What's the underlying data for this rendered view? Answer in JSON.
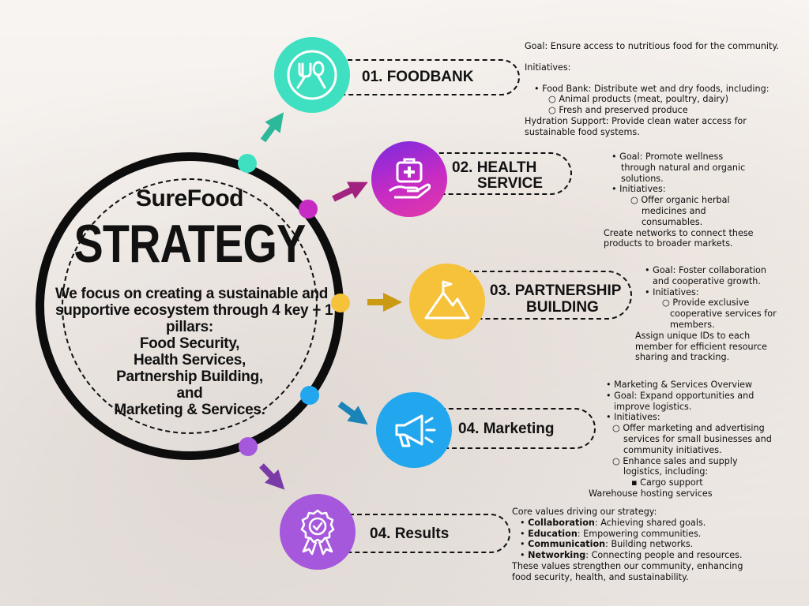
{
  "hub": {
    "brand": "SureFood",
    "title": "STRATEGY",
    "description": [
      "We focus on creating a sustainable and",
      "supportive ecosystem through 4 key + 1",
      "pillars:",
      "Food Security,",
      "Health Services,",
      "Partnership Building,",
      "and",
      "Marketing & Services."
    ]
  },
  "colors": {
    "foodbank": "#3fe0c2",
    "health": "#c62bc4",
    "partnership": "#f5c23a",
    "marketing": "#22a7ee",
    "results": "#a558dc",
    "ring": "#0d0d0d"
  },
  "pillars": [
    {
      "key": "foodbank",
      "label_lines": [
        "01. FOODBANK"
      ],
      "icon": "fork-spoon-icon",
      "details": [
        "Goal: Ensure access to nutritious food for the community.",
        "",
        "Initiatives:",
        "",
        "• Food Bank: Distribute wet and dry foods, including:",
        "○ Animal products (meat, poultry, dairy)",
        "○ Fresh and preserved produce",
        "Hydration Support: Provide clean water access for",
        "sustainable food systems."
      ]
    },
    {
      "key": "health",
      "label_lines": [
        "02. HEALTH",
        "SERVICE"
      ],
      "icon": "medical-kit-hand-icon",
      "details": [
        "• Goal: Promote wellness",
        "through natural and organic",
        "solutions.",
        "• Initiatives:",
        "○ Offer organic herbal",
        "medicines and",
        "consumables.",
        "Create networks to connect these",
        "products to broader markets."
      ]
    },
    {
      "key": "partnership",
      "label_lines": [
        "03. PARTNERSHIP",
        "BUILDING"
      ],
      "icon": "mountain-flag-icon",
      "details": [
        "• Goal: Foster collaboration",
        "and cooperative growth.",
        "• Initiatives:",
        "○ Provide exclusive",
        "cooperative services for",
        "members.",
        "Assign unique IDs to each",
        "member for efficient resource",
        "sharing and tracking."
      ]
    },
    {
      "key": "marketing",
      "label_lines": [
        "04. Marketing"
      ],
      "icon": "megaphone-icon",
      "details": [
        "• Marketing & Services Overview",
        "• Goal: Expand opportunities and",
        "improve logistics.",
        "• Initiatives:",
        "○ Offer marketing and advertising",
        "services for small businesses and",
        "community initiatives.",
        "○ Enhance sales and supply",
        "logistics, including:",
        "▪ Cargo support",
        "Warehouse hosting services"
      ]
    },
    {
      "key": "results",
      "label_lines": [
        "04. Results"
      ],
      "icon": "award-badge-icon",
      "details": [
        {
          "text": "Core values driving our strategy:"
        },
        {
          "bold": "Collaboration",
          "text": ": Achieving shared goals."
        },
        {
          "bold": "Education",
          "text": ": Empowering communities."
        },
        {
          "bold": "Communication",
          "text": ": Building networks."
        },
        {
          "bold": "Networking",
          "text": ": Connecting people and resources."
        },
        {
          "text": "These values strengthen our community, enhancing"
        },
        {
          "text": "food security, health, and sustainability."
        }
      ]
    }
  ]
}
